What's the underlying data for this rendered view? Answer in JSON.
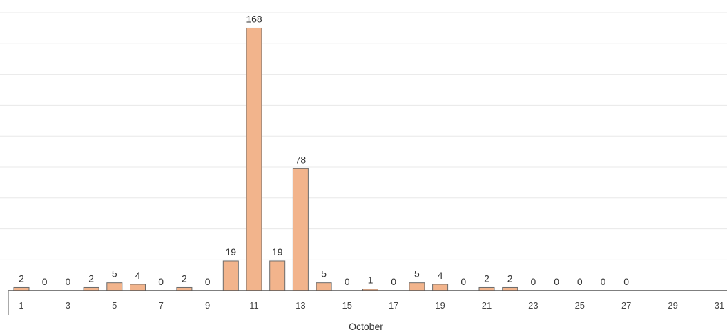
{
  "chart_data": {
    "type": "bar",
    "title": "",
    "xlabel": "October",
    "ylabel": "",
    "categories": [
      1,
      2,
      3,
      4,
      5,
      6,
      7,
      8,
      9,
      10,
      11,
      12,
      13,
      14,
      15,
      16,
      17,
      18,
      19,
      20,
      21,
      22,
      23,
      24,
      25,
      26,
      27,
      28,
      29,
      30,
      31
    ],
    "x_tick_labels": [
      "1",
      "3",
      "5",
      "7",
      "9",
      "11",
      "13",
      "15",
      "17",
      "19",
      "21",
      "23",
      "25",
      "27",
      "29",
      "31"
    ],
    "values": [
      2,
      0,
      0,
      2,
      5,
      4,
      0,
      2,
      0,
      19,
      168,
      19,
      78,
      5,
      0,
      1,
      0,
      5,
      4,
      0,
      2,
      2,
      0,
      0,
      0,
      0,
      0,
      null,
      null,
      null,
      null
    ],
    "data_labels": [
      "2",
      "0",
      "0",
      "2",
      "5",
      "4",
      "0",
      "2",
      "0",
      "19",
      "168",
      "19",
      "78",
      "5",
      "0",
      "1",
      "0",
      "5",
      "4",
      "0",
      "2",
      "2",
      "0",
      "0",
      "0",
      "0",
      "0",
      "",
      "",
      "",
      ""
    ],
    "ylim": [
      0,
      180
    ],
    "grid": true,
    "legend": "none",
    "colors": {
      "bar_fill": "#f2b48c",
      "bar_stroke": "#6b6b6b",
      "grid": "#e8e8e8",
      "axis": "#555555"
    }
  }
}
